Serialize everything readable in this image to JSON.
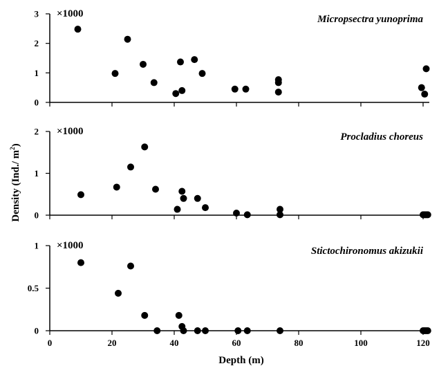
{
  "chart_data": [
    {
      "type": "scatter",
      "title": "Micropsectra yunoprima",
      "multiplier": "×1000",
      "ylim": [
        0,
        3
      ],
      "yticks": [
        "0",
        "1",
        "2",
        "3"
      ],
      "xlim": [
        0,
        122
      ],
      "points": [
        [
          9,
          2.48
        ],
        [
          21,
          0.98
        ],
        [
          25,
          2.14
        ],
        [
          30,
          1.29
        ],
        [
          33.5,
          0.67
        ],
        [
          40.5,
          0.3
        ],
        [
          42,
          1.37
        ],
        [
          42.5,
          0.4
        ],
        [
          46.5,
          1.45
        ],
        [
          49,
          0.98
        ],
        [
          59.5,
          0.45
        ],
        [
          63,
          0.45
        ],
        [
          73.5,
          0.35
        ],
        [
          73.5,
          0.67
        ],
        [
          73.5,
          0.77
        ],
        [
          119.5,
          0.5
        ],
        [
          120.5,
          0.28
        ],
        [
          121,
          1.14
        ]
      ]
    },
    {
      "type": "scatter",
      "title": "Procladius choreus",
      "multiplier": "×1000",
      "ylim": [
        0,
        2
      ],
      "yticks": [
        "0",
        "1",
        "2"
      ],
      "xlim": [
        0,
        122
      ],
      "points": [
        [
          10,
          0.49
        ],
        [
          21.5,
          0.67
        ],
        [
          26,
          1.15
        ],
        [
          30.5,
          1.63
        ],
        [
          34,
          0.62
        ],
        [
          41,
          0.14
        ],
        [
          42.5,
          0.57
        ],
        [
          43,
          0.4
        ],
        [
          47.5,
          0.4
        ],
        [
          50,
          0.18
        ],
        [
          60,
          0.05
        ],
        [
          63.5,
          0.01
        ],
        [
          74,
          0.14
        ],
        [
          74,
          0.01
        ],
        [
          120,
          0.01
        ],
        [
          120.5,
          0.01
        ],
        [
          121,
          0.01
        ],
        [
          121.5,
          0.01
        ]
      ]
    },
    {
      "type": "scatter",
      "title": "Stictochironomus akizukii",
      "multiplier": "×1000",
      "ylim": [
        0,
        1
      ],
      "yticks": [
        "0",
        "0.5",
        "1"
      ],
      "xlim": [
        0,
        122
      ],
      "points": [
        [
          10,
          0.8
        ],
        [
          22,
          0.44
        ],
        [
          26,
          0.76
        ],
        [
          30.5,
          0.18
        ],
        [
          34.5,
          0
        ],
        [
          41.5,
          0.18
        ],
        [
          42.5,
          0.05
        ],
        [
          43,
          0
        ],
        [
          47.5,
          0
        ],
        [
          50,
          0
        ],
        [
          60.5,
          0
        ],
        [
          63.5,
          0
        ],
        [
          74,
          0
        ],
        [
          120,
          0
        ],
        [
          120.5,
          0
        ],
        [
          121,
          0
        ],
        [
          121.5,
          0
        ]
      ]
    }
  ],
  "xaxis": {
    "label": "Depth (m)",
    "ticks": [
      "0",
      "20",
      "40",
      "60",
      "80",
      "100",
      "120"
    ],
    "tick_values": [
      0,
      20,
      40,
      60,
      80,
      100,
      120
    ]
  },
  "yaxis": {
    "label_main": "Density (Ind./ m",
    "label_sup": "2",
    "label_close": ")"
  },
  "colors": {
    "marker": "#000000",
    "axis": "#000000",
    "background": "#ffffff"
  }
}
